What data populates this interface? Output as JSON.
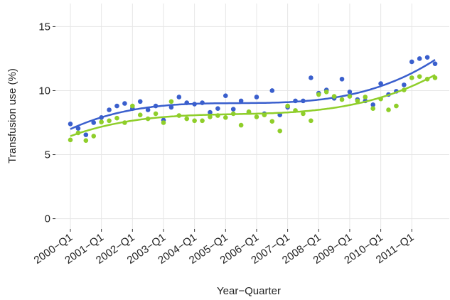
{
  "chart_data": {
    "type": "scatter",
    "xlabel": "Year−Quarter",
    "ylabel": "Transfusion use (%)",
    "categories": [
      "2000−Q1",
      null,
      null,
      null,
      "2001−Q1",
      null,
      null,
      null,
      "2002−Q1",
      null,
      null,
      null,
      "2003−Q1",
      null,
      null,
      null,
      "2004−Q1",
      null,
      null,
      null,
      "2005−Q1",
      null,
      null,
      null,
      "2006−Q1",
      null,
      null,
      null,
      "2007−Q1",
      null,
      null,
      null,
      "2008−Q1",
      null,
      null,
      null,
      "2009−Q1",
      null,
      null,
      null,
      "2010−Q1",
      null,
      null,
      null,
      "2011−Q1",
      null,
      null,
      null
    ],
    "series": [
      {
        "color": "#3a5fcd",
        "values": [
          7.4,
          7.05,
          6.55,
          7.5,
          7.9,
          8.5,
          8.8,
          9.0,
          8.6,
          9.15,
          8.5,
          8.8,
          7.7,
          8.7,
          9.5,
          9.05,
          8.95,
          9.05,
          8.3,
          8.6,
          9.6,
          8.55,
          9.2,
          8.3,
          9.5,
          8.2,
          10.0,
          8.1,
          8.7,
          9.2,
          9.2,
          11.0,
          9.8,
          10.05,
          9.4,
          10.9,
          9.9,
          9.3,
          9.2,
          8.9,
          10.55,
          9.7,
          9.95,
          10.45,
          12.25,
          12.5,
          12.6,
          12.1
        ]
      },
      {
        "color": "#8fce2a",
        "values": [
          6.15,
          6.7,
          6.1,
          6.45,
          7.55,
          7.65,
          7.85,
          7.5,
          8.8,
          8.1,
          7.8,
          8.2,
          7.5,
          9.15,
          8.05,
          7.8,
          7.65,
          7.65,
          7.95,
          8.05,
          7.9,
          8.2,
          7.3,
          8.35,
          7.95,
          8.1,
          7.6,
          6.85,
          8.8,
          8.45,
          8.2,
          7.65,
          9.7,
          9.9,
          9.55,
          9.3,
          9.55,
          9.2,
          9.5,
          8.6,
          9.35,
          8.5,
          8.8,
          10.05,
          11.0,
          11.1,
          10.9,
          11.0
        ]
      }
    ],
    "ylim": [
      -0.8,
      16.8
    ],
    "yticks": [
      0,
      5,
      10,
      15
    ],
    "grid": true,
    "smooth": true
  }
}
